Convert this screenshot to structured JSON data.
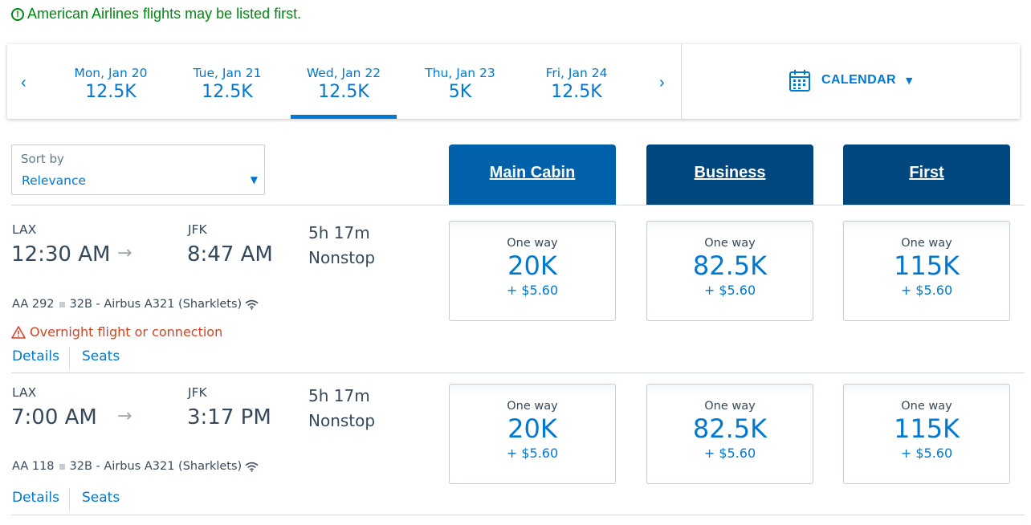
{
  "notice": {
    "icon": "exclamation-circle-icon",
    "text": "American Airlines flights may be listed first."
  },
  "datebar": {
    "prev_icon": "‹",
    "next_icon": "›",
    "dates": [
      {
        "label": "Mon, Jan 20",
        "value": "12.5K",
        "active": false
      },
      {
        "label": "Tue, Jan 21",
        "value": "12.5K",
        "active": false
      },
      {
        "label": "Wed, Jan 22",
        "value": "12.5K",
        "active": true
      },
      {
        "label": "Thu, Jan 23",
        "value": "5K",
        "active": false
      },
      {
        "label": "Fri, Jan 24",
        "value": "12.5K",
        "active": false
      }
    ],
    "calendar_label": "CALENDAR",
    "calendar_caret": "▼"
  },
  "sort": {
    "label": "Sort by",
    "value": "Relevance",
    "caret": "▼"
  },
  "cabins": [
    "Main Cabin",
    "Business",
    "First"
  ],
  "colors": {
    "accent": "#0078d2",
    "main_cabin": "#0061ab",
    "premium_cabin": "#00467f",
    "notice": "#008712",
    "warning": "#d14424"
  },
  "flights": [
    {
      "origin": "LAX",
      "depart": "12:30 AM",
      "arrow": "→",
      "destination": "JFK",
      "arrive": "8:47 AM",
      "duration": "5h 17m",
      "stops": "Nonstop",
      "flight_no": "AA 292",
      "aircraft": "32B - Airbus A321 (Sharklets)",
      "warning": "Overnight flight or connection",
      "details": "Details",
      "seats": "Seats",
      "prices": [
        {
          "label": "One way",
          "miles": "20K",
          "fee": "+ $5.60"
        },
        {
          "label": "One way",
          "miles": "82.5K",
          "fee": "+ $5.60"
        },
        {
          "label": "One way",
          "miles": "115K",
          "fee": "+ $5.60"
        }
      ]
    },
    {
      "origin": "LAX",
      "depart": "7:00 AM",
      "arrow": "→",
      "destination": "JFK",
      "arrive": "3:17 PM",
      "duration": "5h 17m",
      "stops": "Nonstop",
      "flight_no": "AA 118",
      "aircraft": "32B - Airbus A321 (Sharklets)",
      "details": "Details",
      "seats": "Seats",
      "prices": [
        {
          "label": "One way",
          "miles": "20K",
          "fee": "+ $5.60"
        },
        {
          "label": "One way",
          "miles": "82.5K",
          "fee": "+ $5.60"
        },
        {
          "label": "One way",
          "miles": "115K",
          "fee": "+ $5.60"
        }
      ]
    }
  ]
}
